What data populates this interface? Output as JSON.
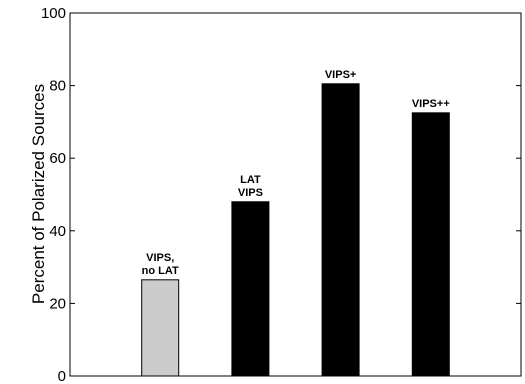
{
  "chart_data": {
    "type": "bar",
    "title": "",
    "xlabel": "",
    "ylabel": "Percent of Polarized Sources",
    "ylim": [
      0,
      100
    ],
    "yticks": [
      0,
      20,
      40,
      60,
      80,
      100
    ],
    "grid": false,
    "categories": [
      [
        "VIPS,",
        "no LAT"
      ],
      [
        "LAT",
        "VIPS"
      ],
      [
        "VIPS+"
      ],
      [
        "VIPS++"
      ]
    ],
    "values": [
      26.5,
      48,
      80.5,
      72.5
    ],
    "colors": [
      "#cccccc",
      "#000000",
      "#000000",
      "#000000"
    ]
  }
}
